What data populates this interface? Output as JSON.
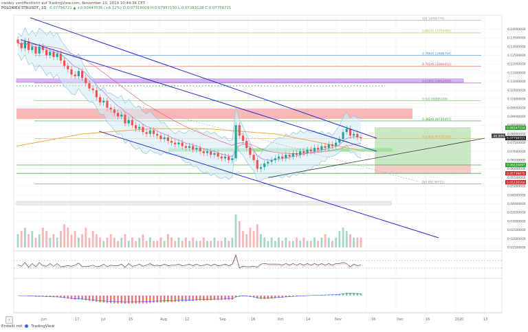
{
  "header": {
    "line1": "cwidey veröffentlicht auf TradingView.com, November 10, 2019 10:44:36 CET",
    "symbol": "POLONIEX:STRUSDT, 1D",
    "ohlc": "0.07756721 ▲ +0.00447036 (+6.12%) O:0.07316009 H:0.07957150 L:0.07283128 C:0.07756721"
  },
  "footer": {
    "text": "Erstellt mit",
    "brand": "TradingView"
  },
  "colors": {
    "up": "#26a69a",
    "down": "#ef5350",
    "channel": "#1f2bd4",
    "bb": "#8ec7dc",
    "ema": "#f29b38",
    "fib": "#9aa0a6",
    "last": "#000000"
  },
  "icons": {
    "prev": "arrow-left-icon",
    "logo": "tradingview-logo-icon"
  },
  "chart_data": {
    "type": "candlestick",
    "title": "",
    "xlabel": "",
    "ylabel": "",
    "x_tick_labels": [
      "Jun",
      "17",
      "Jul",
      "15",
      "Aug",
      "12",
      "Sep",
      "16",
      "Oct",
      "14",
      "Nov",
      "16",
      "Dec",
      "16",
      "2020",
      "13"
    ],
    "y_tick_labels": [
      "0.14000000",
      "0.13500000",
      "0.13000000",
      "0.12500000",
      "0.12000000",
      "0.11500000",
      "0.11000000",
      "0.10500000",
      "0.10000000",
      "0.09500000",
      "0.09000000",
      "0.08500000",
      "0.08000000",
      "0.07500000",
      "0.07000000",
      "0.06500000",
      "0.06000000",
      "0.05500000",
      "0.05000000",
      "0.04500000",
      "0.04000000",
      "0.03500000",
      "0.03000000",
      "0.02500000",
      "0.02000000",
      "0.01500000"
    ],
    "ylim": [
      0.013,
      0.148
    ],
    "close": [
      0.132,
      0.129,
      0.133,
      0.128,
      0.13,
      0.126,
      0.13,
      0.128,
      0.125,
      0.127,
      0.124,
      0.126,
      0.122,
      0.119,
      0.117,
      0.114,
      0.113,
      0.116,
      0.112,
      0.109,
      0.106,
      0.105,
      0.101,
      0.098,
      0.099,
      0.095,
      0.094,
      0.092,
      0.09,
      0.091,
      0.086,
      0.088,
      0.085,
      0.083,
      0.084,
      0.081,
      0.08,
      0.082,
      0.08,
      0.079,
      0.077,
      0.078,
      0.076,
      0.075,
      0.074,
      0.075,
      0.073,
      0.072,
      0.073,
      0.071,
      0.072,
      0.07,
      0.069,
      0.07,
      0.068,
      0.069,
      0.067,
      0.066,
      0.067,
      0.065,
      0.066,
      0.085,
      0.079,
      0.076,
      0.072,
      0.068,
      0.065,
      0.06,
      0.061,
      0.063,
      0.064,
      0.065,
      0.066,
      0.067,
      0.066,
      0.068,
      0.067,
      0.069,
      0.068,
      0.07,
      0.069,
      0.071,
      0.07,
      0.072,
      0.071,
      0.073,
      0.072,
      0.074,
      0.073,
      0.075,
      0.077,
      0.081,
      0.083,
      0.079,
      0.08,
      0.078,
      0.07756721
    ],
    "volume": [
      0.4,
      0.5,
      0.6,
      0.4,
      0.5,
      0.3,
      0.4,
      0.6,
      0.5,
      0.3,
      0.4,
      0.3,
      0.5,
      0.7,
      0.6,
      0.4,
      0.5,
      0.3,
      0.4,
      0.6,
      0.3,
      0.5,
      0.4,
      0.3,
      0.2,
      0.3,
      0.4,
      0.3,
      0.2,
      0.3,
      0.4,
      0.2,
      0.3,
      0.2,
      0.3,
      0.4,
      0.2,
      0.3,
      0.2,
      0.2,
      0.3,
      0.2,
      0.4,
      0.3,
      0.2,
      0.3,
      0.2,
      0.3,
      0.2,
      0.3,
      0.2,
      0.2,
      0.3,
      0.2,
      0.2,
      0.3,
      0.2,
      0.2,
      0.3,
      0.2,
      0.3,
      1.0,
      0.8,
      0.5,
      0.4,
      0.6,
      0.5,
      0.7,
      0.4,
      0.3,
      0.2,
      0.3,
      0.2,
      0.3,
      0.2,
      0.3,
      0.2,
      0.2,
      0.3,
      0.2,
      0.3,
      0.2,
      0.2,
      0.3,
      0.2,
      0.3,
      0.4,
      0.3,
      0.2,
      0.3,
      0.5,
      0.6,
      0.5,
      0.4,
      0.3,
      0.3,
      0.3
    ],
    "fib_levels": [
      {
        "label": "1(0.14495770)",
        "value": 0.145
      },
      {
        "label": "0.882(0.13785485)",
        "value": 0.1378
      },
      {
        "label": "0.786(0.12486764)",
        "value": 0.1249
      },
      {
        "label": "0.702(0.11880452)",
        "value": 0.1188
      },
      {
        "label": "0.618(0.10912058)",
        "value": 0.1091
      },
      {
        "label": "0.5(0.09886240)",
        "value": 0.0989
      },
      {
        "label": "0.382(0.08740457)",
        "value": 0.0874
      },
      {
        "label": "0.236(0.07732282)",
        "value": 0.0773
      },
      {
        "label": "0(0.05130711)",
        "value": 0.0513
      }
    ],
    "price_tags": [
      {
        "label": "0.08347154",
        "value": 0.0835
      },
      {
        "label": "0.07756721",
        "value": 0.07757
      },
      {
        "label": "0.06220497",
        "value": 0.0622
      },
      {
        "label": "0.05739470",
        "value": 0.0574
      },
      {
        "label": "0.05226164",
        "value": 0.0523
      }
    ],
    "last_price": "0.07756721",
    "crosshair_label": "-46.89%",
    "grid": true,
    "legend": "none"
  }
}
